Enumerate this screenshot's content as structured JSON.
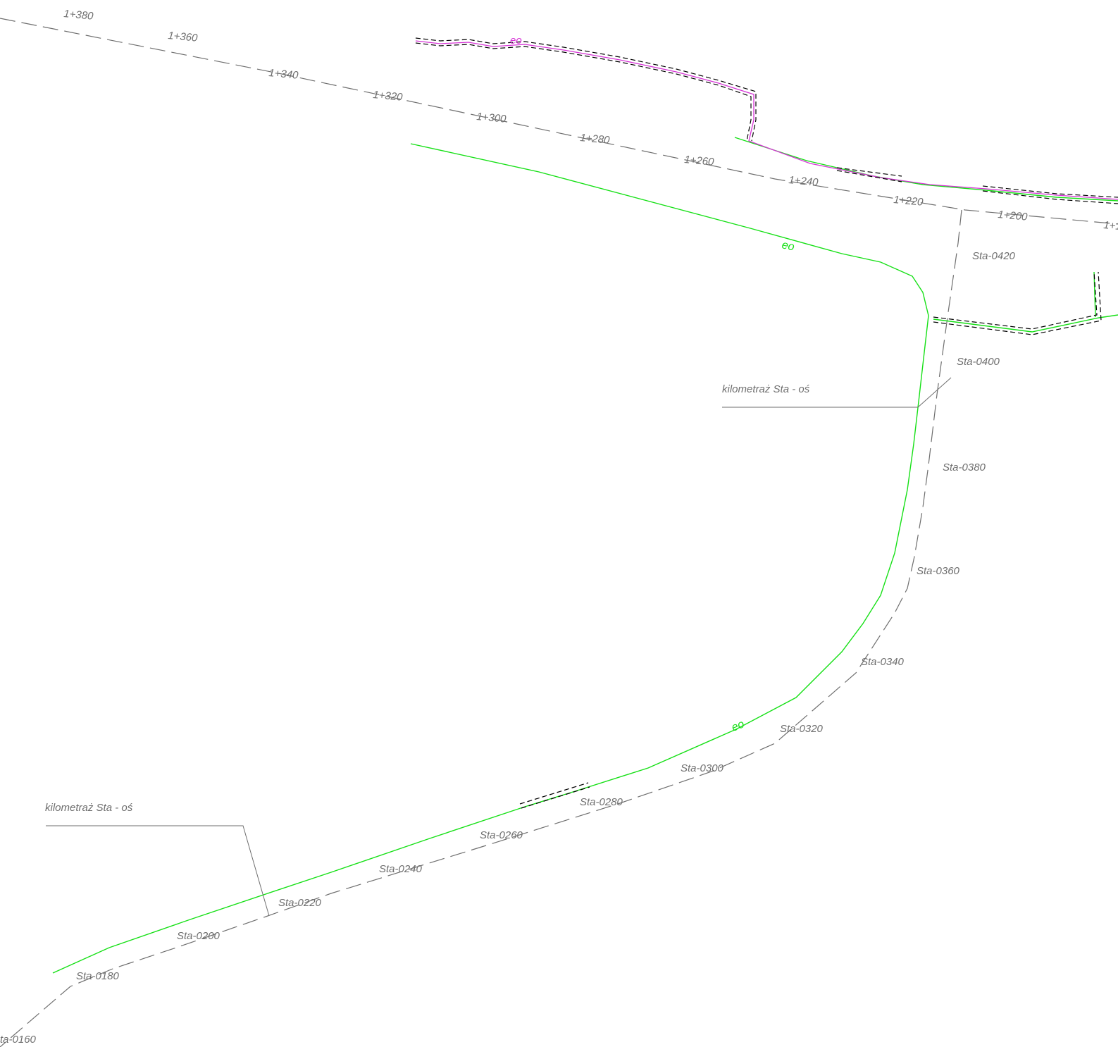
{
  "colors": {
    "background": "#ffffff",
    "axis_line": "#6e6e6e",
    "label_text": "#6e6e6e",
    "green_cable": "#16e016",
    "magenta_cable": "#d633d6",
    "black_dash": "#000000"
  },
  "cable_label": "eo",
  "main_axis": {
    "stations": [
      "1+380",
      "1+360",
      "1+340",
      "1+320",
      "1+300",
      "1+280",
      "1+260",
      "1+240",
      "1+220",
      "1+200",
      "1+1"
    ]
  },
  "branch_axis": {
    "stations": [
      "Sta-0420",
      "Sta-0400",
      "Sta-0380",
      "Sta-0360",
      "Sta-0340",
      "Sta-0320",
      "Sta-0300",
      "Sta-0280",
      "Sta-0260",
      "Sta-0240",
      "Sta-0220",
      "Sta-0200",
      "Sta-0180",
      "ta-0160"
    ]
  },
  "callouts": [
    {
      "text": "kilometraż Sta - oś"
    },
    {
      "text": "kilometraż Sta - oś"
    }
  ]
}
